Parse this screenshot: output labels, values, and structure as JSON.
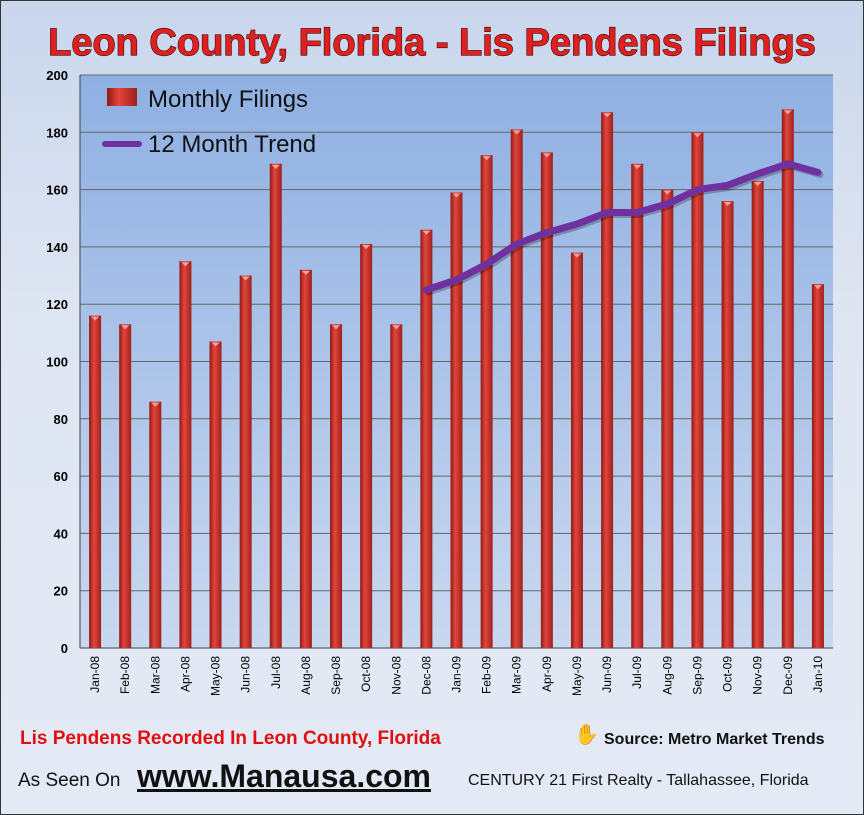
{
  "chart_data": {
    "type": "bar",
    "title": "Leon County, Florida - Lis Pendens Filings",
    "categories": [
      "Jan-08",
      "Feb-08",
      "Mar-08",
      "Apr-08",
      "May-08",
      "Jun-08",
      "Jul-08",
      "Aug-08",
      "Sep-08",
      "Oct-08",
      "Nov-08",
      "Dec-08",
      "Jan-09",
      "Feb-09",
      "Mar-09",
      "Apr-09",
      "May-09",
      "Jun-09",
      "Jul-09",
      "Aug-09",
      "Sep-09",
      "Oct-09",
      "Nov-09",
      "Dec-09",
      "Jan-10"
    ],
    "series": [
      {
        "name": "Monthly Filings",
        "type": "bar",
        "color": "#d83a32",
        "values": [
          116,
          113,
          86,
          135,
          107,
          130,
          169,
          132,
          113,
          141,
          113,
          146,
          159,
          172,
          181,
          173,
          138,
          187,
          169,
          160,
          180,
          156,
          163,
          188,
          127
        ]
      },
      {
        "name": "12 Month Trend",
        "type": "line",
        "color": "#7030a0",
        "values": [
          null,
          null,
          null,
          null,
          null,
          null,
          null,
          null,
          null,
          null,
          null,
          125,
          128.5,
          134,
          141,
          145,
          148,
          152,
          152,
          155,
          160,
          161.5,
          165.5,
          169,
          166
        ]
      }
    ],
    "ylim": [
      0,
      200
    ],
    "yticks": [
      0,
      20,
      40,
      60,
      80,
      100,
      120,
      140,
      160,
      180,
      200
    ],
    "grid": true,
    "legend": "top-left",
    "xlabel": "",
    "ylabel": ""
  },
  "footer": {
    "caption": "Lis Pendens  Recorded In Leon County, Florida",
    "source": "Source: Metro Market Trends",
    "as_seen_on": "As Seen On",
    "website": "www.Manausa.com",
    "realty": "CENTURY 21 First Realty - Tallahassee, Florida",
    "hand_icon": "hand-icon"
  }
}
